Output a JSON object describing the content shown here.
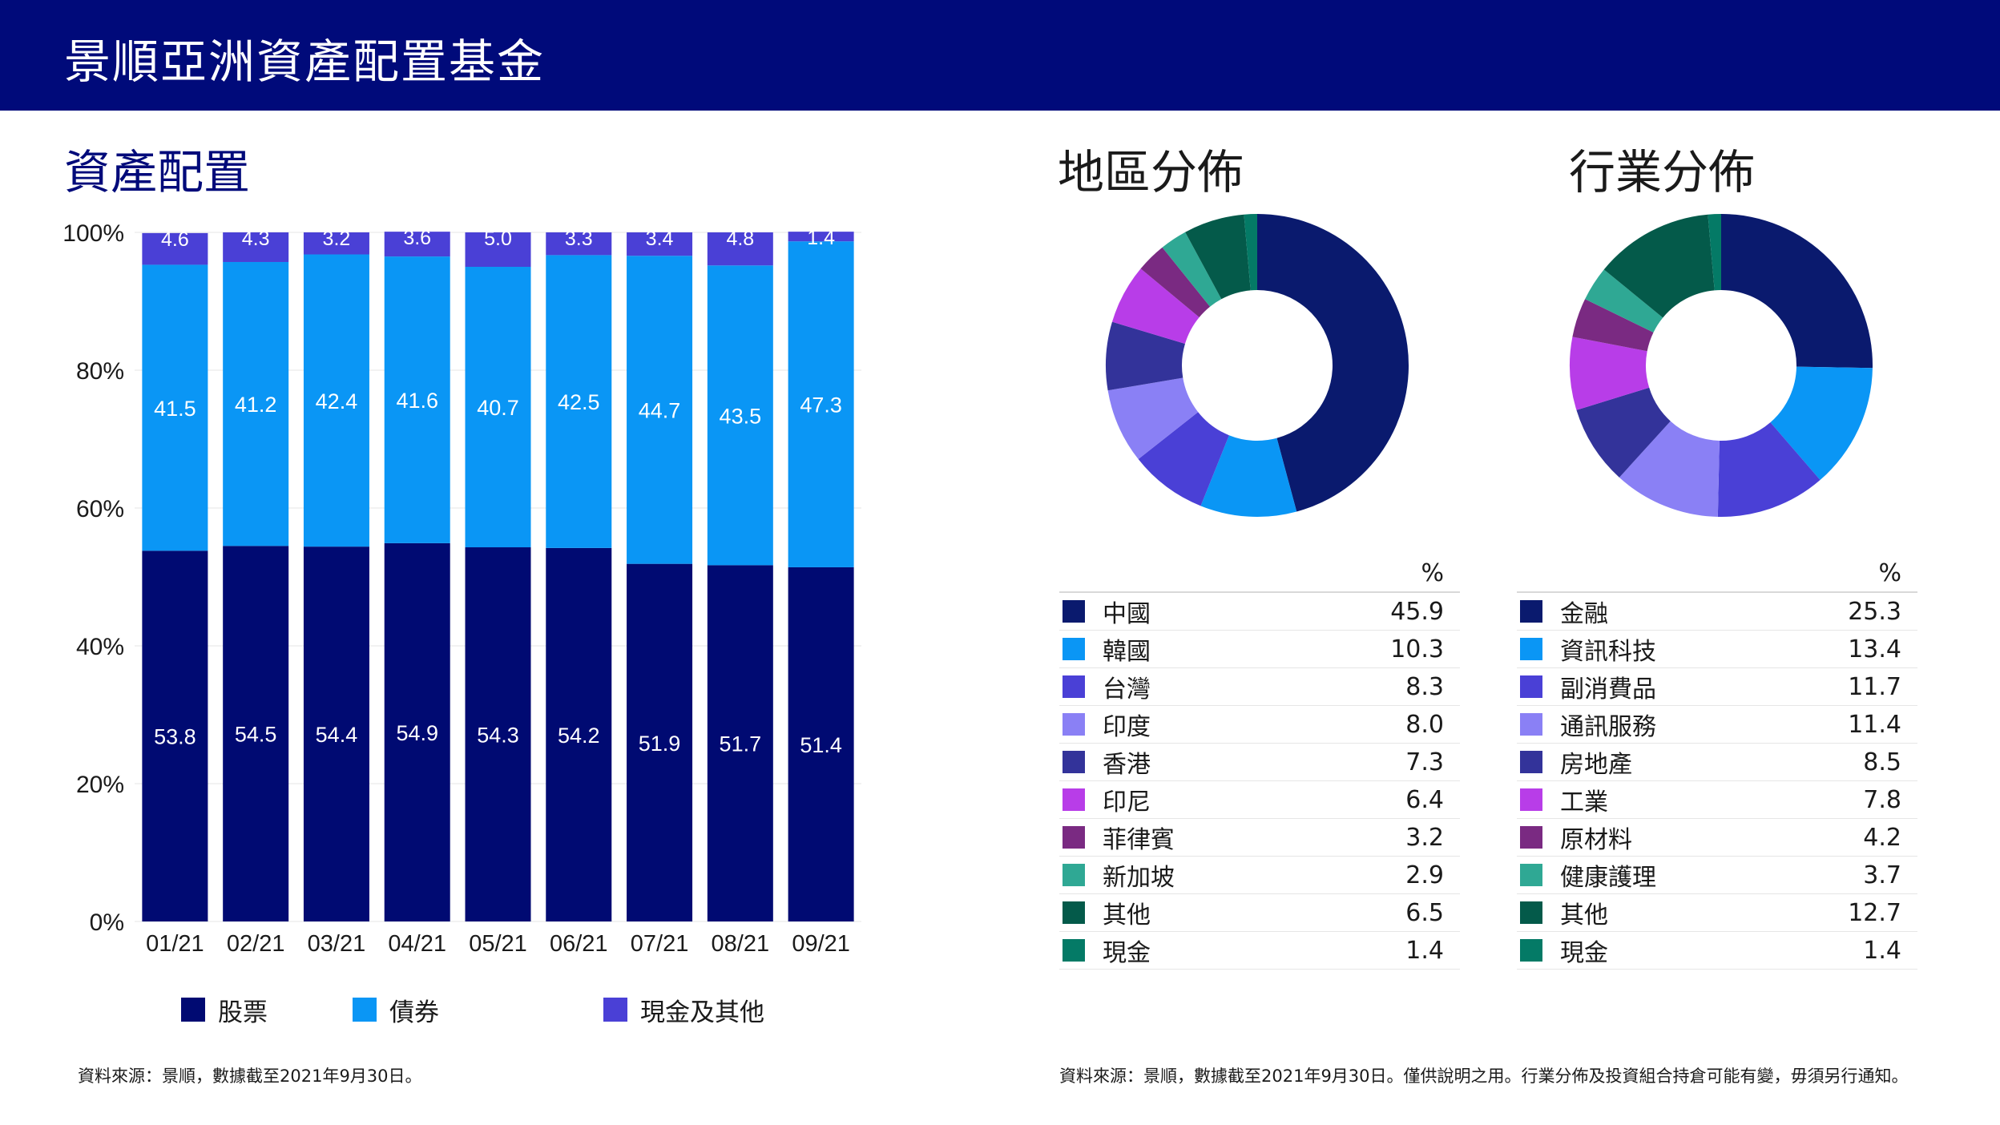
{
  "header": {
    "title": "景順亞洲資產配置基金"
  },
  "sections": {
    "allocation_title": "資產配置",
    "region_title": "地區分佈",
    "sector_title": "行業分佈"
  },
  "colors": {
    "header_bg": "#000a7a",
    "stocks": "#000a72",
    "bonds": "#0a96f5",
    "cash_other": "#4a40d6"
  },
  "chart_data": [
    {
      "type": "bar",
      "stacked": true,
      "categories": [
        "01/21",
        "02/21",
        "03/21",
        "04/21",
        "05/21",
        "06/21",
        "07/21",
        "08/21",
        "09/21"
      ],
      "series": [
        {
          "name": "股票",
          "color": "#000a72",
          "values": [
            53.8,
            54.5,
            54.4,
            54.9,
            54.3,
            54.2,
            51.9,
            51.7,
            51.4
          ]
        },
        {
          "name": "債券",
          "color": "#0a96f5",
          "values": [
            41.5,
            41.2,
            42.4,
            41.6,
            40.7,
            42.5,
            44.7,
            43.5,
            47.3
          ]
        },
        {
          "name": "現金及其他",
          "color": "#4a40d6",
          "values": [
            4.6,
            4.3,
            3.2,
            3.6,
            5.0,
            3.3,
            3.4,
            4.8,
            1.4
          ]
        }
      ],
      "yticks": [
        "0%",
        "20%",
        "40%",
        "60%",
        "80%",
        "100%"
      ],
      "ylim": [
        0,
        100
      ],
      "legend_position": "bottom"
    },
    {
      "type": "pie",
      "variant": "donut",
      "unit_label": "%",
      "slices": [
        {
          "label": "中國",
          "value": 45.9,
          "color": "#0a1a6e"
        },
        {
          "label": "韓國",
          "value": 10.3,
          "color": "#0a96f5"
        },
        {
          "label": "台灣",
          "value": 8.3,
          "color": "#4a40d6"
        },
        {
          "label": "印度",
          "value": 8.0,
          "color": "#8a80f5"
        },
        {
          "label": "香港",
          "value": 7.3,
          "color": "#33339a"
        },
        {
          "label": "印尼",
          "value": 6.4,
          "color": "#b83de8"
        },
        {
          "label": "菲律賓",
          "value": 3.2,
          "color": "#7a2a82"
        },
        {
          "label": "新加坡",
          "value": 2.9,
          "color": "#2fa894"
        },
        {
          "label": "其他",
          "value": 6.5,
          "color": "#045a4a"
        },
        {
          "label": "現金",
          "value": 1.4,
          "color": "#047a66"
        }
      ]
    },
    {
      "type": "pie",
      "variant": "donut",
      "unit_label": "%",
      "slices": [
        {
          "label": "金融",
          "value": 25.3,
          "color": "#0a1a6e"
        },
        {
          "label": "資訊科技",
          "value": 13.4,
          "color": "#0a96f5"
        },
        {
          "label": "副消費品",
          "value": 11.7,
          "color": "#4a40d6"
        },
        {
          "label": "通訊服務",
          "value": 11.4,
          "color": "#8a80f5"
        },
        {
          "label": "房地產",
          "value": 8.5,
          "color": "#33339a"
        },
        {
          "label": "工業",
          "value": 7.8,
          "color": "#b83de8"
        },
        {
          "label": "原材料",
          "value": 4.2,
          "color": "#7a2a82"
        },
        {
          "label": "健康護理",
          "value": 3.7,
          "color": "#2fa894"
        },
        {
          "label": "其他",
          "value": 12.7,
          "color": "#045a4a"
        },
        {
          "label": "現金",
          "value": 1.4,
          "color": "#047a66"
        }
      ]
    }
  ],
  "sources": {
    "left": "資料來源：景順，數據截至2021年9月30日。",
    "right": "資料來源：景順，數據截至2021年9月30日。僅供說明之用。行業分佈及投資組合持倉可能有變，毋須另行通知。"
  }
}
